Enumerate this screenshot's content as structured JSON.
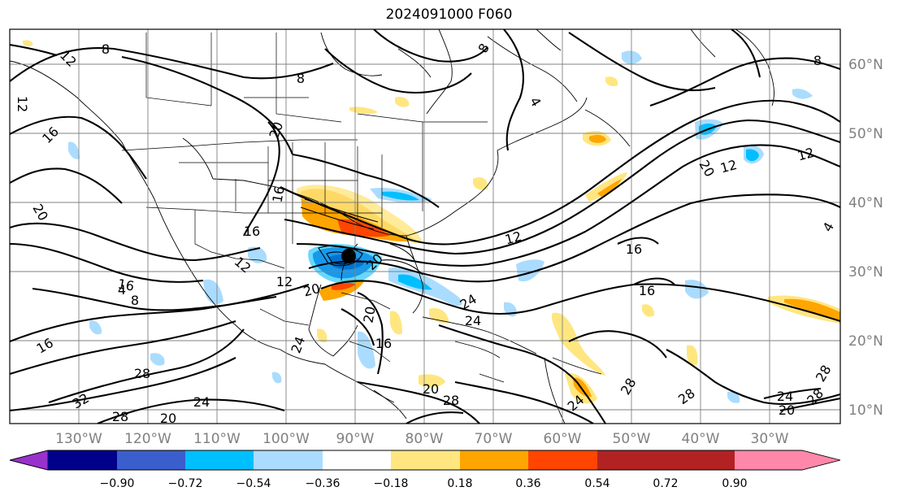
{
  "title": "2024091000 F060",
  "map": {
    "projection": "plate-carree",
    "lon_range": [
      -138,
      -17
    ],
    "lat_range": [
      6,
      63
    ],
    "x_ticks": [
      "130°W",
      "120°W",
      "110°W",
      "100°W",
      "90°W",
      "80°W",
      "70°W",
      "60°W",
      "50°W",
      "40°W",
      "30°W"
    ],
    "x_tick_values": [
      -130,
      -120,
      -110,
      -100,
      -90,
      -80,
      -70,
      -60,
      -50,
      -40,
      -30
    ],
    "y_ticks": [
      "10°N",
      "20°N",
      "30°N",
      "40°N",
      "50°N",
      "60°N"
    ],
    "y_tick_values": [
      10,
      20,
      30,
      40,
      50,
      60
    ],
    "grid": true,
    "storm_marker": {
      "lon": -89.6,
      "lat": 32.3,
      "color": "#000000"
    }
  },
  "contour_labels": [
    "12",
    "8",
    "12",
    "16",
    "16",
    "20",
    "12",
    "20",
    "16",
    "20",
    "12",
    "16",
    "16",
    "16",
    "12",
    "20",
    "12",
    "24",
    "28",
    "24",
    "20",
    "28",
    "16",
    "28",
    "32",
    "24",
    "28",
    "20",
    "20",
    "28",
    "24",
    "28",
    "24",
    "20",
    "24",
    "16",
    "12",
    "8",
    "4",
    "8",
    "4",
    "8",
    "8",
    "4",
    "28",
    "20"
  ],
  "colorbar": {
    "ticks": [
      "−0.90",
      "−0.72",
      "−0.54",
      "−0.36",
      "−0.18",
      "0.18",
      "0.36",
      "0.54",
      "0.72",
      "0.90"
    ],
    "colors": [
      "#9932cc",
      "#00008b",
      "#3a5fcd",
      "#00bfff",
      "#aadcff",
      "#ffffff",
      "#ffe680",
      "#ffa500",
      "#ff4500",
      "#b22222",
      "#ff88aa"
    ]
  }
}
